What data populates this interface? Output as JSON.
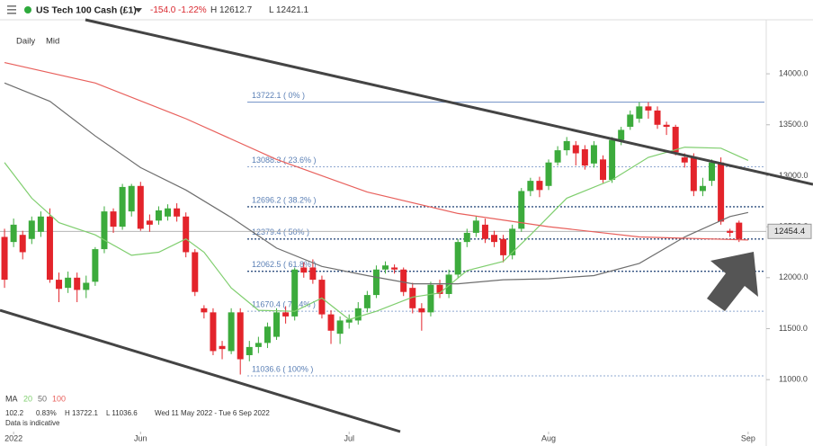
{
  "header": {
    "instrument": "US Tech 100 Cash (£1)",
    "change": "-154.0",
    "change_pct": "-1.22%",
    "high": "H 12612.7",
    "low": "L 12421.1"
  },
  "chart_data": {
    "type": "candlestick",
    "timeframe": "Daily",
    "price_type": "Mid",
    "up_color": "#3cab3c",
    "down_color": "#e3242b",
    "ylim": [
      10490,
      14530
    ],
    "yticks": [
      {
        "value": 11000,
        "label": "11000.0"
      },
      {
        "value": 11500,
        "label": "11500.0"
      },
      {
        "value": 12000,
        "label": "12000.0"
      },
      {
        "value": 12500,
        "label": "12500.0"
      },
      {
        "value": 13000,
        "label": "13000.0"
      },
      {
        "value": 13500,
        "label": "13500.0"
      },
      {
        "value": 14000,
        "label": "14000.0"
      }
    ],
    "xlim": [
      -0.5,
      83.8
    ],
    "xticks": [
      {
        "value": 1,
        "label": "2022"
      },
      {
        "value": 15,
        "label": "Jun"
      },
      {
        "value": 38,
        "label": "Jul"
      },
      {
        "value": 60,
        "label": "Aug"
      },
      {
        "value": 82,
        "label": "Sep"
      }
    ],
    "open": [
      12400,
      12350,
      12420,
      12380,
      12450,
      12600,
      11980,
      11900,
      12000,
      11880,
      11960,
      12280,
      12650,
      12500,
      12650,
      12900,
      12560,
      12560,
      12600,
      12680,
      12600,
      12250,
      11700,
      11660,
      11330,
      11280,
      11660,
      11240,
      11320,
      11360,
      11420,
      11660,
      11620,
      12100,
      12100,
      11980,
      11640,
      11450,
      11560,
      11580,
      11700,
      11830,
      12080,
      12100,
      12080,
      11900,
      11700,
      11660,
      11930,
      11840,
      12030,
      12350,
      12440,
      12520,
      12420,
      12380,
      12220,
      12480,
      12850,
      12950,
      12900,
      13130,
      13250,
      13300,
      13260,
      13120,
      13160,
      12960,
      13350,
      13480,
      13560,
      13680,
      13640,
      13500,
      13480,
      13180,
      13180,
      12850,
      12950,
      13130,
      12460,
      12540
    ],
    "high": [
      12480,
      12580,
      12460,
      12600,
      12650,
      12680,
      12050,
      12060,
      12050,
      12020,
      12300,
      12700,
      12680,
      12920,
      12920,
      12940,
      12620,
      12700,
      12720,
      12730,
      12640,
      12280,
      11730,
      11700,
      11380,
      11700,
      11700,
      11380,
      11420,
      11560,
      11700,
      11720,
      12100,
      12150,
      12180,
      12020,
      11680,
      11620,
      11640,
      11760,
      11870,
      12120,
      12160,
      12130,
      12100,
      11950,
      11750,
      11960,
      11980,
      12080,
      12380,
      12480,
      12600,
      12580,
      12460,
      12420,
      12520,
      12880,
      12980,
      12990,
      13160,
      13290,
      13380,
      13340,
      13300,
      13340,
      13200,
      13380,
      13480,
      13640,
      13722,
      13722,
      13680,
      13530,
      13500,
      13220,
      13220,
      12980,
      13160,
      13180,
      12480,
      12560
    ],
    "low": [
      11900,
      12300,
      12180,
      12330,
      12400,
      11950,
      11760,
      11850,
      11760,
      11800,
      11920,
      12240,
      12440,
      12470,
      12600,
      12460,
      12450,
      12520,
      12560,
      12550,
      12200,
      11820,
      11600,
      11240,
      11200,
      11250,
      11050,
      11180,
      11260,
      11310,
      11390,
      11550,
      11580,
      12000,
      11940,
      11600,
      11350,
      11350,
      11500,
      11540,
      11660,
      11800,
      12040,
      12040,
      11820,
      11650,
      11480,
      11620,
      11800,
      11800,
      12000,
      12300,
      12400,
      12340,
      12300,
      12150,
      12180,
      12450,
      12800,
      12790,
      12860,
      13100,
      13200,
      13100,
      13060,
      13080,
      12930,
      12930,
      13300,
      13450,
      13520,
      13560,
      13460,
      13400,
      13200,
      13080,
      12800,
      12800,
      12900,
      12520,
      12400,
      12350
    ],
    "close": [
      11980,
      12520,
      12250,
      12560,
      12600,
      11980,
      11890,
      12000,
      11880,
      11950,
      12280,
      12650,
      12500,
      12890,
      12900,
      12480,
      12520,
      12660,
      12680,
      12600,
      12250,
      11860,
      11660,
      11280,
      11300,
      11660,
      11200,
      11320,
      11360,
      11520,
      11660,
      11620,
      12080,
      12050,
      11980,
      11640,
      11480,
      11580,
      11590,
      11700,
      11830,
      12080,
      12120,
      12080,
      11860,
      11700,
      11660,
      11930,
      11840,
      12030,
      12350,
      12440,
      12560,
      12380,
      12350,
      12220,
      12480,
      12850,
      12950,
      12860,
      13130,
      13250,
      13340,
      13220,
      13100,
      13300,
      12960,
      13350,
      13450,
      13600,
      13680,
      13640,
      13500,
      13480,
      13230,
      13130,
      12850,
      12900,
      13130,
      12550,
      12440,
      12380
    ],
    "ma_label": "MA",
    "moving_averages": [
      {
        "name": "20",
        "color": "#7fce6e",
        "x": [
          0,
          3,
          6,
          10,
          14,
          17,
          20,
          22,
          25,
          28,
          32,
          35,
          38,
          41,
          45,
          48,
          51,
          55,
          58,
          62,
          67,
          71,
          75,
          79,
          82
        ],
        "values": [
          13130,
          12780,
          12540,
          12420,
          12220,
          12250,
          12380,
          12250,
          11900,
          11680,
          11670,
          11800,
          11590,
          11670,
          11810,
          11850,
          12070,
          12160,
          12420,
          12780,
          12960,
          13180,
          13280,
          13270,
          13150
        ]
      },
      {
        "name": "50",
        "color": "#6e6e6e",
        "x": [
          0,
          5,
          10,
          15,
          20,
          25,
          30,
          35,
          40,
          45,
          50,
          55,
          60,
          65,
          70,
          75,
          80,
          82
        ],
        "values": [
          13910,
          13730,
          13390,
          13080,
          12860,
          12590,
          12290,
          12110,
          12020,
          11940,
          11940,
          11980,
          11990,
          12020,
          12140,
          12400,
          12600,
          12640
        ]
      },
      {
        "name": "100",
        "color": "#e8605c",
        "x": [
          0,
          10,
          20,
          30,
          40,
          50,
          60,
          70,
          82
        ],
        "values": [
          14110,
          13910,
          13560,
          13160,
          12840,
          12630,
          12500,
          12400,
          12370
        ]
      }
    ],
    "fib_levels": [
      {
        "value": 13722.1,
        "label": "13722.1 ( 0% )",
        "style": "solid"
      },
      {
        "value": 13088.3,
        "label": "13088.3 ( 23.6% )",
        "style": "light"
      },
      {
        "value": 12696.2,
        "label": "12696.2 ( 38.2% )",
        "style": "dark"
      },
      {
        "value": 12379.4,
        "label": "12379.4 ( 50% )",
        "style": "dark"
      },
      {
        "value": 12062.5,
        "label": "12062.5 ( 61.8% )",
        "style": "dark"
      },
      {
        "value": 11670.4,
        "label": "11670.4 ( 76.4% )",
        "style": "light"
      },
      {
        "value": 11036.6,
        "label": "11036.6 ( 100% )",
        "style": "light"
      }
    ],
    "last_price": 12454.4,
    "summary": {
      "change": "102.2",
      "change_pct": "0.83%",
      "high": "H 13722.1",
      "low": "L 11036.6",
      "range": "Wed 11 May 2022 - Tue 6 Sep 2022",
      "note": "Data is indicative"
    }
  }
}
